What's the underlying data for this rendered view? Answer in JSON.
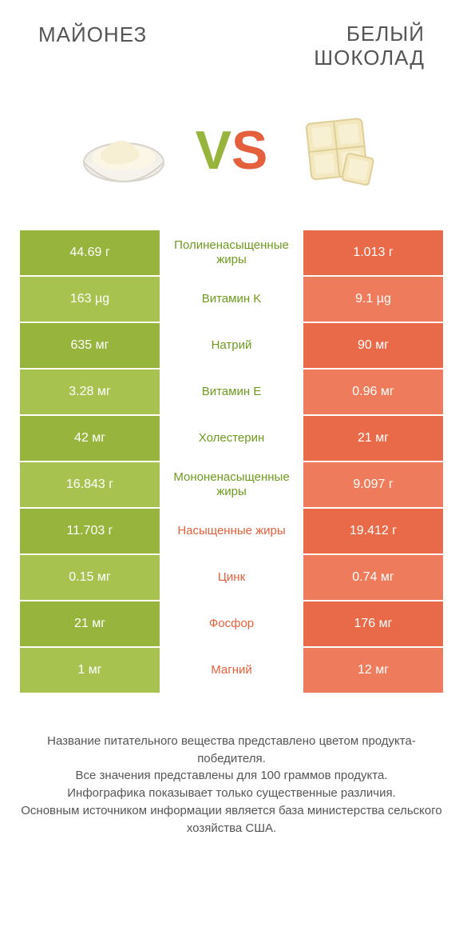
{
  "colors": {
    "green": "#97b43c",
    "green_light": "#a7c24f",
    "orange": "#e86a48",
    "orange_light": "#ee7c5c",
    "text_green": "#6f9a1e",
    "text_orange": "#e45f3b"
  },
  "header": {
    "left": "МАЙОНЕЗ",
    "right_line1": "БЕЛЫЙ",
    "right_line2": "ШОКОЛАД"
  },
  "vs": {
    "v": "V",
    "s": "S"
  },
  "rows": [
    {
      "left": "44.69 г",
      "mid": "Полиненасыщенные жиры",
      "right": "1.013 г",
      "winner": "left"
    },
    {
      "left": "163 µg",
      "mid": "Витамин K",
      "right": "9.1 µg",
      "winner": "left"
    },
    {
      "left": "635 мг",
      "mid": "Натрий",
      "right": "90 мг",
      "winner": "left"
    },
    {
      "left": "3.28 мг",
      "mid": "Витамин E",
      "right": "0.96 мг",
      "winner": "left"
    },
    {
      "left": "42 мг",
      "mid": "Холестерин",
      "right": "21 мг",
      "winner": "left"
    },
    {
      "left": "16.843 г",
      "mid": "Мононенасыщенные жиры",
      "right": "9.097 г",
      "winner": "left"
    },
    {
      "left": "11.703 г",
      "mid": "Насыщенные жиры",
      "right": "19.412 г",
      "winner": "right"
    },
    {
      "left": "0.15 мг",
      "mid": "Цинк",
      "right": "0.74 мг",
      "winner": "right"
    },
    {
      "left": "21 мг",
      "mid": "Фосфор",
      "right": "176 мг",
      "winner": "right"
    },
    {
      "left": "1 мг",
      "mid": "Магний",
      "right": "12 мг",
      "winner": "right"
    }
  ],
  "footer": {
    "l1": "Название питательного вещества представлено цветом продукта-победителя.",
    "l2": "Все значения представлены для 100 граммов продукта.",
    "l3": "Инфографика показывает только существенные различия.",
    "l4": "Основным источником информации является база министерства сельского хозяйства США."
  }
}
